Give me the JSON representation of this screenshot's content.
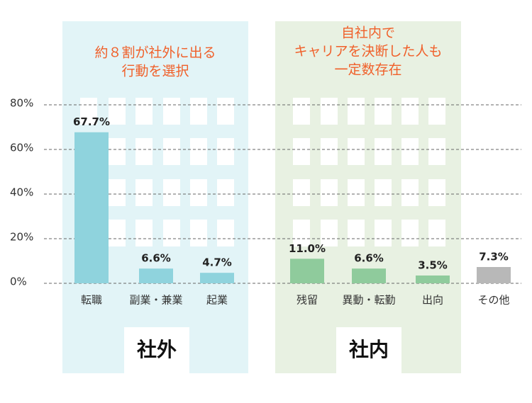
{
  "chart_data": {
    "type": "bar",
    "categories": [
      "転職",
      "副業・兼業",
      "起業",
      "残留",
      "異動・転勤",
      "出向",
      "その他"
    ],
    "values": [
      67.7,
      6.6,
      4.7,
      11.0,
      6.6,
      3.5,
      7.3
    ],
    "value_labels": [
      "67.7%",
      "6.6%",
      "4.7%",
      "11.0%",
      "6.6%",
      "3.5%",
      "7.3%"
    ],
    "colors": [
      "#8fd3dd",
      "#8fd3dd",
      "#8fd3dd",
      "#8fcb9c",
      "#8fcb9c",
      "#8fcb9c",
      "#b8b8b8"
    ],
    "ylim": [
      0,
      80
    ],
    "yticks": [
      {
        "value": 0,
        "label": "0%"
      },
      {
        "value": 20,
        "label": "20%"
      },
      {
        "value": 40,
        "label": "40%"
      },
      {
        "value": 60,
        "label": "60%"
      },
      {
        "value": 80,
        "label": "80%"
      }
    ],
    "grid": true,
    "annotations": [
      {
        "lines": [
          "約８割が社外に出る",
          "行動を選択"
        ],
        "label": "社外"
      },
      {
        "lines": [
          "自社内で",
          "キャリアを決断した人も",
          "一定数存在"
        ],
        "label": "社内"
      }
    ]
  }
}
